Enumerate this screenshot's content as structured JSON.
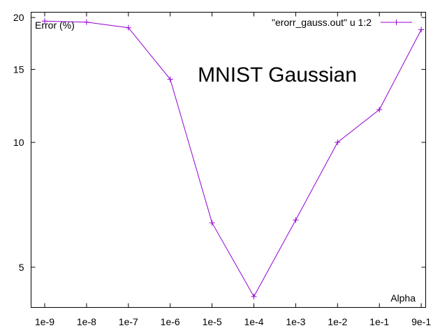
{
  "chart_data": {
    "type": "line",
    "title": "MNIST Gaussian",
    "xlabel": "Alpha",
    "ylabel": "Error (%)",
    "categories": [
      "1e-9",
      "1e-8",
      "1e-7",
      "1e-6",
      "1e-5",
      "1e-4",
      "1e-3",
      "1e-2",
      "1e-1",
      "9e-1"
    ],
    "y_ticks": [
      5,
      10,
      15,
      20
    ],
    "ylim": [
      4.0,
      20.6
    ],
    "y_scale": "log",
    "grid": false,
    "legend_position": "top-right",
    "series": [
      {
        "name": "\"erorr_gauss.out\" u 1:2",
        "color": "#9400d3",
        "x": [
          "1e-9",
          "1e-8",
          "1e-7",
          "1e-6",
          "1e-5",
          "1e-4",
          "1e-3",
          "1e-2",
          "1e-1",
          "9e-1"
        ],
        "values": [
          19.6,
          19.5,
          18.9,
          14.2,
          6.4,
          4.25,
          6.5,
          10.0,
          12.0,
          18.7
        ]
      }
    ]
  }
}
